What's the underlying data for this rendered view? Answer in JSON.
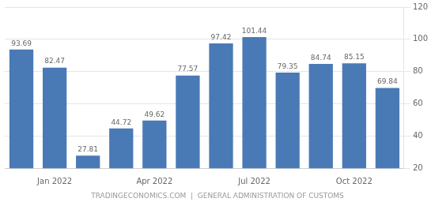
{
  "chart_data": {
    "type": "bar",
    "categories": [
      null,
      "Jan 2022",
      null,
      null,
      "Apr 2022",
      null,
      null,
      "Jul 2022",
      null,
      null,
      "Oct 2022",
      null
    ],
    "values": [
      93.69,
      82.47,
      27.81,
      44.72,
      49.62,
      77.57,
      97.42,
      101.44,
      79.35,
      84.74,
      85.15,
      69.84
    ],
    "color": "#4a7ab5",
    "ylim": [
      20,
      120
    ],
    "yticks": [
      20,
      40,
      60,
      80,
      100,
      120
    ],
    "grid": true,
    "data_labels": true,
    "annotations": [
      "TRADINGECONOMICS.COM  |  GENERAL ADMINISTRATION OF CUSTOMS"
    ]
  }
}
